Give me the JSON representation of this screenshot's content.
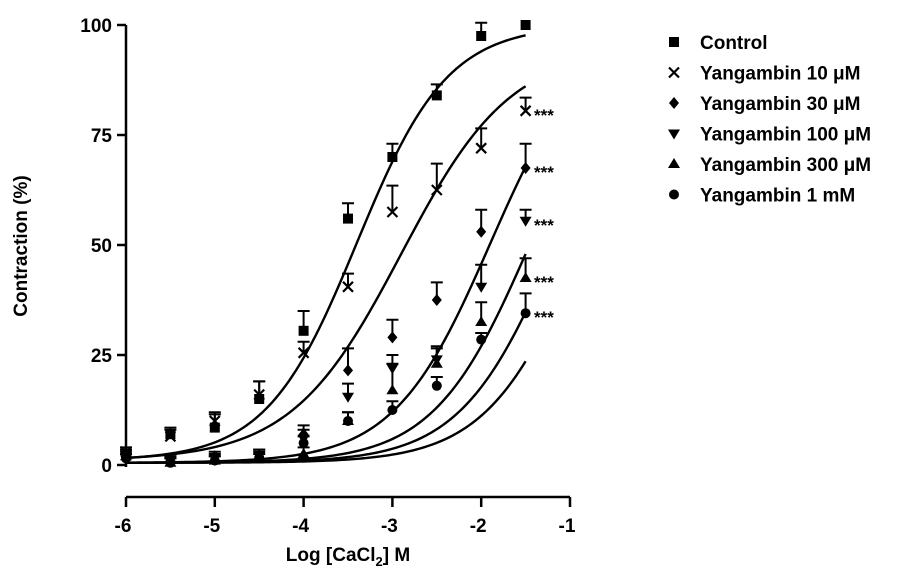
{
  "chart_data": {
    "type": "scatter",
    "xlabel_main": "Log [CaCl",
    "xlabel_sub": "2",
    "xlabel_tail": "] M",
    "ylabel": "Contraction (%)",
    "xlim": [
      -6,
      -1
    ],
    "ylim": [
      0,
      100
    ],
    "xticks": [
      -6,
      -5,
      -4,
      -3,
      -2,
      -1
    ],
    "yticks": [
      0,
      25,
      50,
      75,
      100
    ],
    "legend_position": "right",
    "significance": [
      {
        "y": 80.5,
        "label": "***"
      },
      {
        "y": 67.5,
        "label": "***"
      },
      {
        "y": 55.5,
        "label": "***"
      },
      {
        "y": 42.5,
        "label": "***"
      },
      {
        "y": 34.5,
        "label": "***"
      }
    ],
    "series": [
      {
        "name": "Control",
        "marker": "square",
        "x": [
          -6,
          -5.5,
          -5,
          -4.5,
          -4,
          -3.5,
          -3,
          -2.5,
          -2,
          -1.5
        ],
        "y": [
          2.5,
          7,
          8.5,
          15,
          30.5,
          56,
          70,
          84,
          97.5,
          100
        ],
        "err": [
          1,
          1.5,
          3,
          4,
          4.5,
          3.5,
          3,
          2.5,
          3,
          0
        ],
        "fit": {
          "bottom": 1,
          "top": 100,
          "logec50": -3.4,
          "hill": 0.85
        }
      },
      {
        "name": "Yangambin 10 μM",
        "marker": "x",
        "x": [
          -6,
          -5.5,
          -5,
          -4.5,
          -4,
          -3.5,
          -3,
          -2.5,
          -2,
          -1.5
        ],
        "y": [
          3,
          6.5,
          10,
          16,
          25.5,
          40.5,
          57.5,
          62.5,
          72,
          80.5
        ],
        "err": [
          1,
          1.5,
          2,
          3,
          2.5,
          3,
          6,
          6,
          4.5,
          3
        ],
        "fit": {
          "bottom": 1,
          "top": 95,
          "logec50": -2.9,
          "hill": 0.7
        }
      },
      {
        "name": "Yangambin 30 μM",
        "marker": "diamond",
        "x": [
          -6,
          -5.5,
          -5,
          -4.5,
          -4,
          -3.5,
          -3,
          -2.5,
          -2,
          -1.5
        ],
        "y": [
          1.5,
          1,
          2,
          2,
          7,
          21.5,
          29,
          37.5,
          53,
          67.5
        ],
        "err": [
          1,
          1,
          1,
          1.5,
          2,
          5,
          4,
          4,
          5,
          5.5
        ],
        "fit": {
          "bottom": 0.5,
          "top": 100,
          "logec50": -1.9,
          "hill": 0.8
        }
      },
      {
        "name": "Yangambin 100 μM",
        "marker": "tri-down",
        "x": [
          -6,
          -5.5,
          -5,
          -4.5,
          -4,
          -3.5,
          -3,
          -2.5,
          -2,
          -1.5
        ],
        "y": [
          1.5,
          1,
          1.5,
          2,
          6,
          15.5,
          22,
          24,
          40.5,
          55.5
        ],
        "err": [
          1,
          1,
          1,
          1.5,
          2,
          3,
          3,
          3,
          5,
          2.5
        ],
        "fit": {
          "bottom": 0.5,
          "top": 100,
          "logec50": -1.45,
          "hill": 0.8
        }
      },
      {
        "name": "Yangambin 300 μM",
        "marker": "tri-up",
        "x": [
          -6,
          -5.5,
          -5,
          -4.5,
          -4,
          -3.5,
          -3,
          -2.5,
          -2,
          -1.5
        ],
        "y": [
          2,
          0.5,
          1,
          1.5,
          2.5,
          10,
          17,
          23,
          32.5,
          42.5
        ],
        "err": [
          1,
          1,
          1,
          1.5,
          1.5,
          2,
          6,
          3.5,
          4.5,
          4.5
        ],
        "fit": {
          "bottom": 0.5,
          "top": 100,
          "logec50": -1.15,
          "hill": 0.8
        }
      },
      {
        "name": "Yangambin 1 mM",
        "marker": "circle",
        "x": [
          -6,
          -5.5,
          -5,
          -4.5,
          -4,
          -3.5,
          -3,
          -2.5,
          -2,
          -1.5
        ],
        "y": [
          1.5,
          0.5,
          1,
          1.5,
          5,
          10,
          12.5,
          18,
          28.5,
          34.5
        ],
        "err": [
          1,
          1,
          1,
          1,
          1.5,
          2,
          2,
          2,
          1.5,
          4.5
        ],
        "fit": {
          "bottom": 0.5,
          "top": 100,
          "logec50": -0.85,
          "hill": 0.8
        }
      }
    ]
  }
}
